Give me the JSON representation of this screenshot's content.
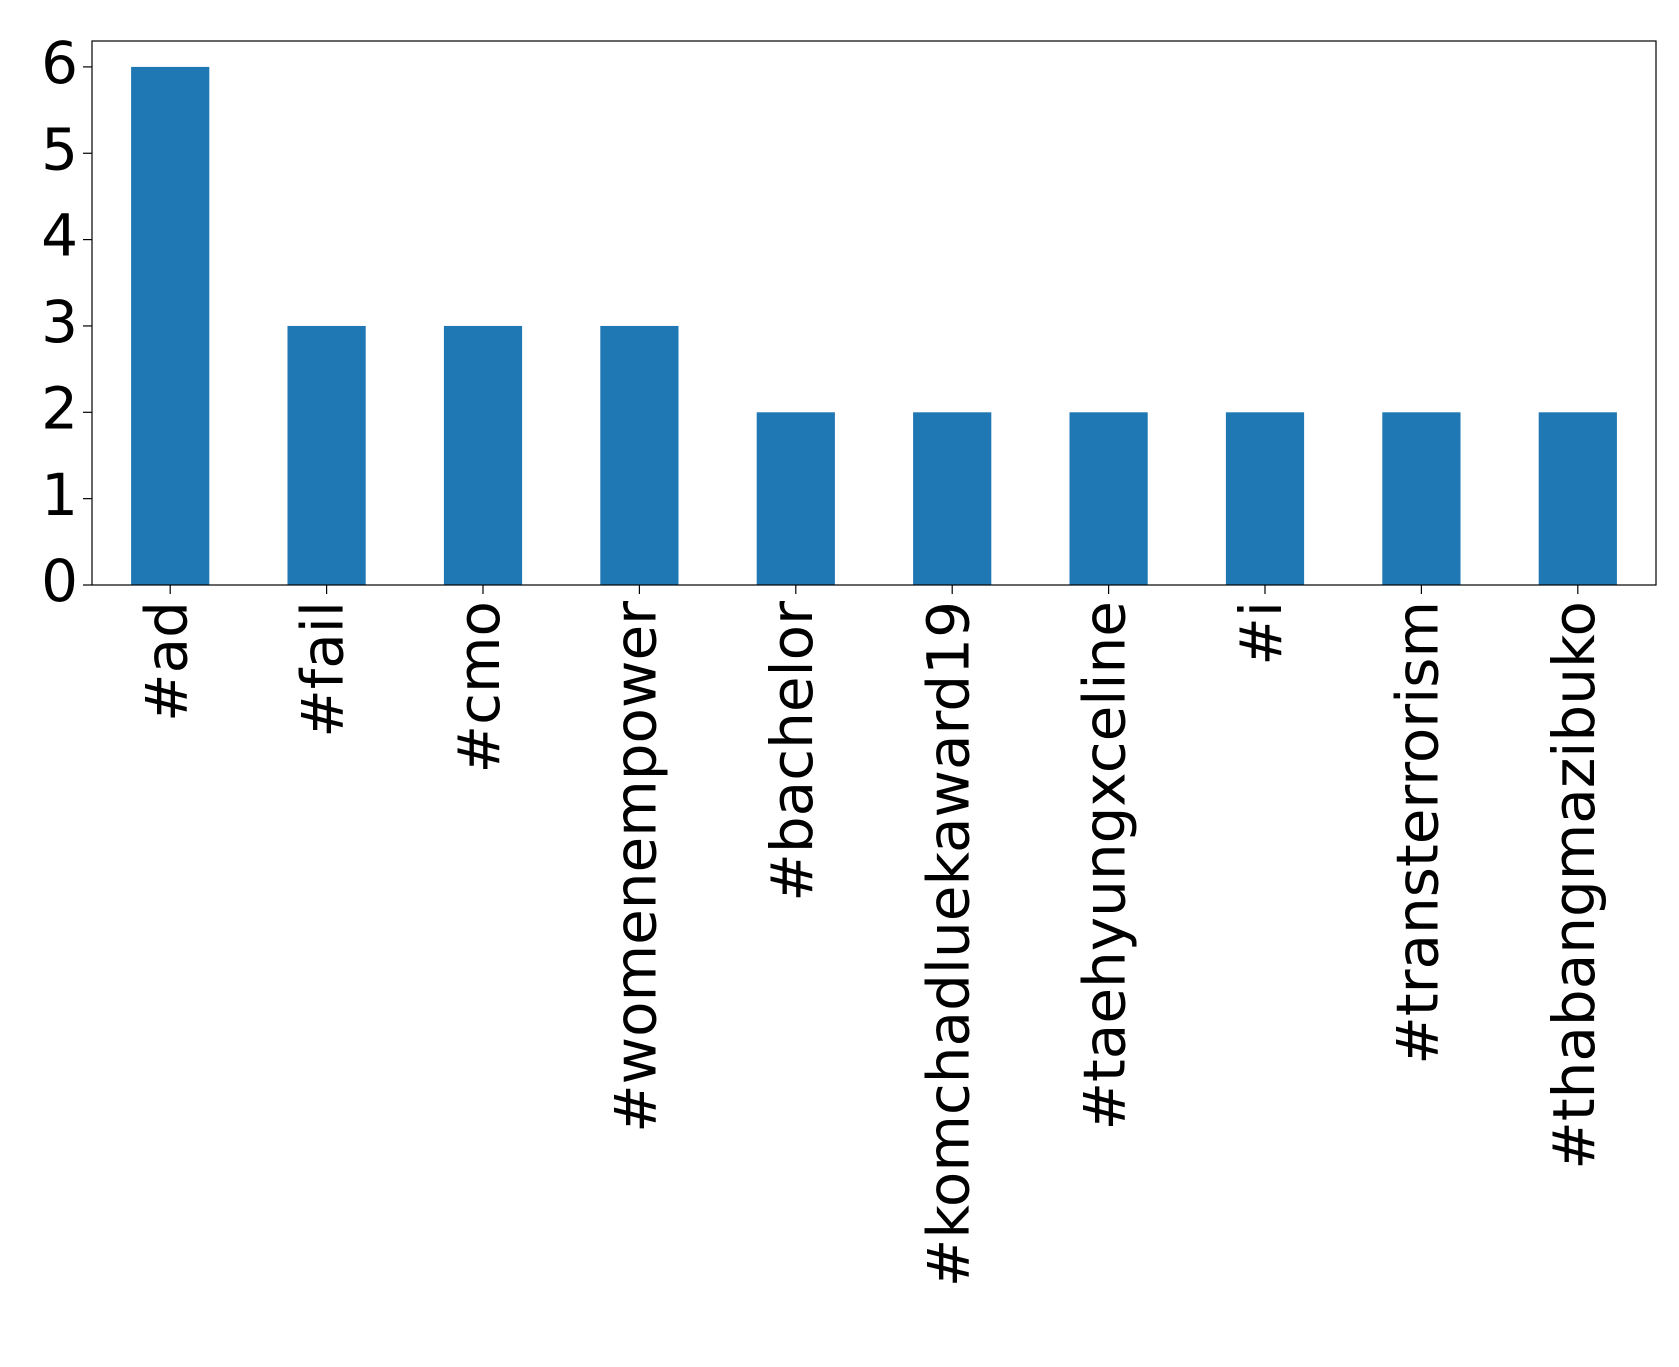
{
  "chart_data": {
    "type": "bar",
    "categories": [
      "#ad",
      "#fail",
      "#cmo",
      "#womenempower",
      "#bachelor",
      "#komchadluekaward19",
      "#taehyungxceline",
      "#i",
      "#transterrorism",
      "#thabangmazibuko"
    ],
    "values": [
      6,
      3,
      3,
      3,
      2,
      2,
      2,
      2,
      2,
      2
    ],
    "color": "#1f77b4",
    "ylim": [
      0,
      6.3
    ],
    "yticks": [
      0,
      1,
      2,
      3,
      4,
      5,
      6
    ],
    "grid": false
  }
}
